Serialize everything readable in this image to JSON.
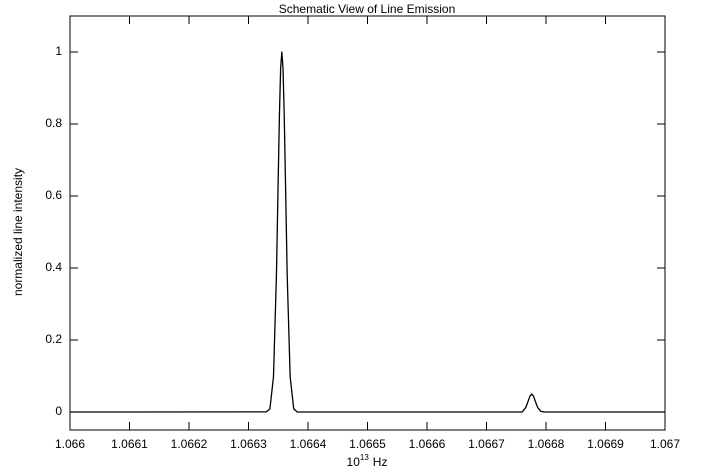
{
  "chart_data": {
    "type": "line",
    "title": "Schematic View of Line Emission",
    "x_label": {
      "base": "10",
      "superscript": "13",
      "text": "Hz"
    },
    "y_label": "normalized line intensity",
    "x": [
      1.066,
      1.06633,
      1.066336,
      1.066342,
      1.066347,
      1.06635,
      1.066352,
      1.066354,
      1.066356,
      1.066358,
      1.06636,
      1.066362,
      1.066365,
      1.06637,
      1.066376,
      1.066382,
      1.06676,
      1.066761,
      1.066766,
      1.06677,
      1.066773,
      1.066776,
      1.066779,
      1.066782,
      1.066786,
      1.066791,
      1.066796,
      1.067
    ],
    "series": [
      {
        "color": "#000000",
        "values": [
          0,
          0.0003,
          0.0088,
          0.098,
          0.383,
          0.653,
          0.827,
          0.954,
          1,
          0.954,
          0.827,
          0.653,
          0.383,
          0.098,
          0.0088,
          0,
          0,
          0.0022,
          0.0125,
          0.03,
          0.044,
          0.05,
          0.044,
          0.03,
          0.0125,
          0.0022,
          0,
          0
        ]
      }
    ],
    "xlim": [
      1.066,
      1.067
    ],
    "xticks": [
      1.066,
      1.0661,
      1.0662,
      1.0663,
      1.0664,
      1.0665,
      1.0666,
      1.0667,
      1.0668,
      1.0669,
      1.067
    ],
    "ylim": [
      -0.05,
      1.1
    ],
    "yticks": [
      0,
      0.2,
      0.4,
      0.6,
      0.8,
      1
    ],
    "grid": false
  }
}
